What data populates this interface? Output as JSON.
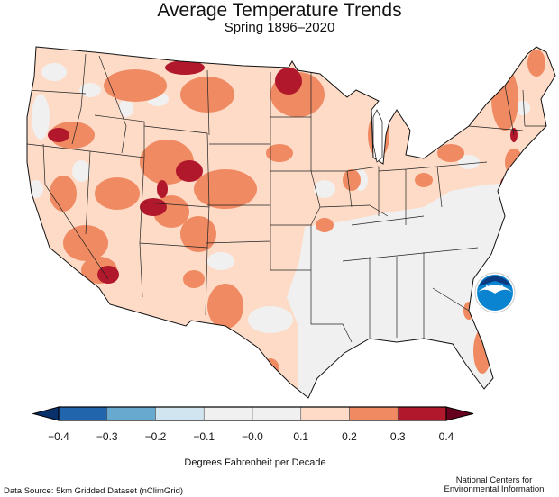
{
  "title": "Average Temperature Trends",
  "subtitle": "Spring 1896–2020",
  "legend": {
    "units": "Degrees Fahrenheit per Decade",
    "ticks": [
      "−0.4",
      "−0.3",
      "−0.2",
      "−0.1",
      "−0.0",
      "0.1",
      "0.2",
      "0.3",
      "0.4"
    ],
    "bins": [
      {
        "range": "-0.4 to -0.3",
        "color": "#2166ac"
      },
      {
        "range": "-0.3 to -0.2",
        "color": "#67a9cf"
      },
      {
        "range": "-0.2 to -0.1",
        "color": "#d1e5f0"
      },
      {
        "range": "-0.1 to 0.0",
        "color": "#f0f0f0"
      },
      {
        "range": "0.0 to 0.1",
        "color": "#f0f0f0"
      },
      {
        "range": "0.1 to 0.2",
        "color": "#fddbc7"
      },
      {
        "range": "0.2 to 0.3",
        "color": "#ef8a62"
      },
      {
        "range": "0.3 to 0.4",
        "color": "#b2182b"
      }
    ],
    "below_color": "#08306b",
    "above_color": "#67001f"
  },
  "logo": {
    "text": "NOAA",
    "color": "#0a84d0"
  },
  "footer": {
    "source": "Data Source: 5km Gridded Dataset (nClimGrid)",
    "credit_line1": "National Centers for",
    "credit_line2": "Environmental Information"
  }
}
